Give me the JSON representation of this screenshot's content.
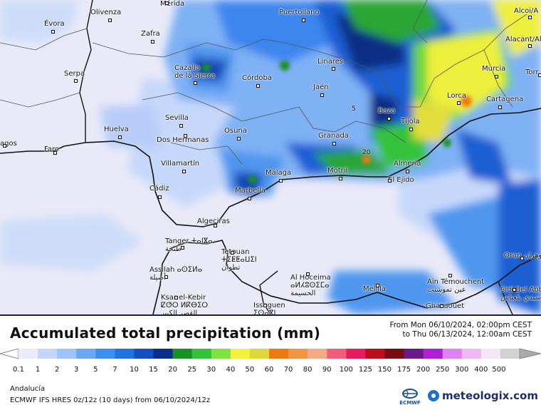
{
  "map": {
    "region_name": "Andalucía",
    "cities": [
      {
        "name": "Mérida"
      },
      {
        "name": "Olivenza"
      },
      {
        "name": "Évora"
      },
      {
        "name": "Zafra"
      },
      {
        "name": "Puertollano"
      },
      {
        "name": "Alcoi/A"
      },
      {
        "name": "Alacant/Al"
      },
      {
        "name": "Serpa"
      },
      {
        "name": "Cazalla de la Sierra"
      },
      {
        "name": "Córdoba"
      },
      {
        "name": "Linares"
      },
      {
        "name": "Murcia"
      },
      {
        "name": "Torr"
      },
      {
        "name": "Jaén"
      },
      {
        "name": "Lorca"
      },
      {
        "name": "Cartagena"
      },
      {
        "name": "Sevilla"
      },
      {
        "name": "Huelva"
      },
      {
        "name": "Osuna"
      },
      {
        "name": "Baza"
      },
      {
        "name": "Tíjola"
      },
      {
        "name": "Dos Hermanas"
      },
      {
        "name": "Granada"
      },
      {
        "name": "Faro"
      },
      {
        "name": "agos"
      },
      {
        "name": "Villamartín"
      },
      {
        "name": "Málaga"
      },
      {
        "name": "Motril"
      },
      {
        "name": "Almería"
      },
      {
        "name": "El Ejido"
      },
      {
        "name": "Cádiz"
      },
      {
        "name": "Marbella"
      },
      {
        "name": "Algeciras"
      },
      {
        "name": "Tanger ⵜⴰⵏⴵⴰ طنجة"
      },
      {
        "name": "Tetouan ⵜⵉⵟⵟⴰⵡⵉⵏ تطوان"
      },
      {
        "name": "Assilah ⴰⵙⵉⵍⴰ أصيلة"
      },
      {
        "name": "Oran وهران"
      },
      {
        "name": "Al Hoceima ⴰⵍⵃⵓⵙⵉⵎⴰ الحسيمة"
      },
      {
        "name": "Melilla"
      },
      {
        "name": "Aïn Témouchent ⵄⵉⵏ ⵜⵎⵓⵛⵏⵜ عين تموشنت"
      },
      {
        "name": "Sidi Bel Abbès سيدي بلعباس"
      },
      {
        "name": "Ksar el-Kebir ⵇⵚⵔ ⵍⴽⴱⵉⵔ القصر الكبير"
      },
      {
        "name": "Issaguen ⵉⵙⴰⴳⵏ"
      },
      {
        "name": "Ghazaouet"
      }
    ],
    "contour_labels": [
      "5",
      "20"
    ]
  },
  "legend": {
    "title": "Accumulated total precipitation (mm)",
    "period_from": "From Mon 06/10/2024, 02:00pm CEST",
    "period_to": "to Thu 06/13/2024, 12:00am CEST",
    "classes": [
      "0.1",
      "1",
      "2",
      "3",
      "5",
      "7",
      "10",
      "15",
      "20",
      "25",
      "30",
      "40",
      "50",
      "60",
      "70",
      "80",
      "90",
      "100",
      "125",
      "150",
      "175",
      "200",
      "250",
      "300",
      "400",
      "500"
    ],
    "colors": [
      "#ebebfb",
      "#c4d7fb",
      "#9ec2fa",
      "#6ba7f5",
      "#3c8ef0",
      "#1f74e0",
      "#1450c2",
      "#0d2c8f",
      "#1a8f26",
      "#33c23a",
      "#7ee33f",
      "#f2f23f",
      "#e0d83a",
      "#ee7a10",
      "#f29540",
      "#f4ab85",
      "#f05e7a",
      "#e41e5a",
      "#b80f1a",
      "#7a0a14",
      "#6a188a",
      "#b01ed8",
      "#e080f2",
      "#efb8f5",
      "#f5e6f8",
      "#d2d2d2"
    ]
  },
  "footer": {
    "region": "Andalucía",
    "model": "ECMWF IFS HRES 0z/12z (10 days) from 06/10/2024/12z",
    "ecmwf_logo": "ECMWF",
    "brand": "meteologix.com"
  }
}
